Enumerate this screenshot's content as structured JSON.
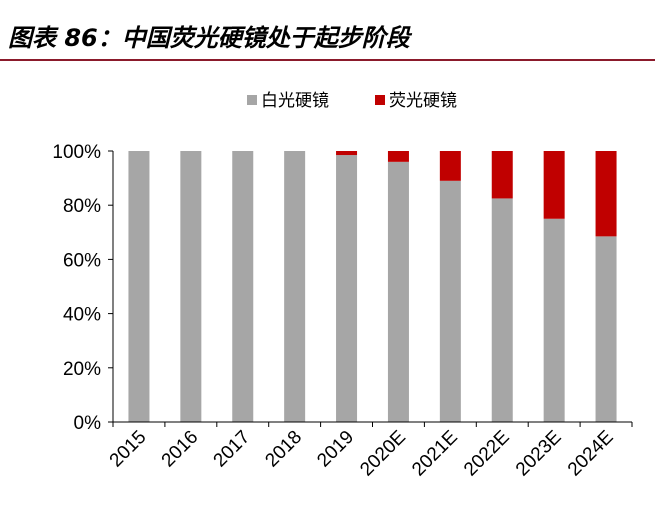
{
  "title": "图表 86：中国荧光硬镜处于起步阶段",
  "colors": {
    "white_lens": "#a6a6a6",
    "fluorescent_lens": "#c00000",
    "title_rule": "#8b1a2b"
  },
  "chart_data": {
    "type": "bar",
    "stacked": true,
    "categories": [
      "2015",
      "2016",
      "2017",
      "2018",
      "2019",
      "2020E",
      "2021E",
      "2022E",
      "2023E",
      "2024E"
    ],
    "series": [
      {
        "name": "白光硬镜",
        "color": "#a6a6a6",
        "values": [
          100,
          100,
          100,
          100,
          98.5,
          96,
          89,
          82.5,
          75,
          68.5
        ]
      },
      {
        "name": "荧光硬镜",
        "color": "#c00000",
        "values": [
          0,
          0,
          0,
          0,
          1.5,
          4,
          11,
          17.5,
          25,
          31.5
        ]
      }
    ],
    "yticks": [
      "0%",
      "20%",
      "40%",
      "60%",
      "80%",
      "100%"
    ],
    "ylim": [
      0,
      100
    ],
    "legend_position": "top-center",
    "grid": false
  }
}
